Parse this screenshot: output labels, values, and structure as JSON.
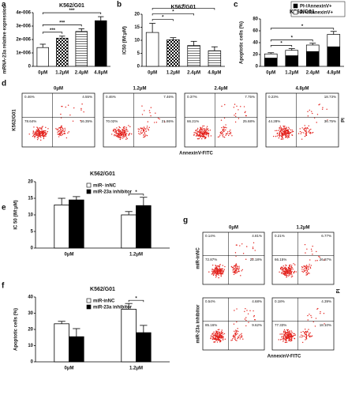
{
  "chart_data": [
    {
      "panel": "a",
      "type": "bar",
      "title": "K562/G01",
      "ylabel": "mRNA-23a relative expression",
      "categories": [
        "0μM",
        "1.2μM",
        "2.4μM",
        "4.8μM"
      ],
      "values": [
        1.4e-06,
        2.1e-06,
        2.6e-06,
        3.4e-06
      ],
      "errors": [
        2.5e-07,
        1.5e-07,
        2e-07,
        3e-07
      ],
      "bar_patterns": [
        "plain",
        "checkered",
        "hatched",
        "solid"
      ],
      "ylim": [
        0,
        4e-06
      ],
      "yticks": [
        0,
        {
          "value": 1e-06,
          "label": "1e-006"
        },
        {
          "value": 2e-06,
          "label": "2e-006"
        },
        {
          "value": 3e-06,
          "label": "3e-006"
        },
        {
          "value": 4e-06,
          "label": "4e-006"
        }
      ],
      "annotations": [
        {
          "text": "***",
          "from": 0,
          "to": 1
        },
        {
          "text": "***",
          "from": 0,
          "to": 2
        },
        {
          "text": "***",
          "from": 0,
          "to": 3
        }
      ]
    },
    {
      "panel": "b",
      "type": "bar",
      "title": "K562/G01",
      "ylabel": "IC50 (IM:μM)",
      "categories": [
        "0μM",
        "1.2μM",
        "2.4μM",
        "4.8μM"
      ],
      "values": [
        13,
        10.2,
        8,
        6
      ],
      "errors": [
        3.5,
        0.8,
        1.6,
        1.5
      ],
      "bar_patterns": [
        "plain",
        "checkered",
        "hatched",
        "hatched"
      ],
      "ylim": [
        0,
        20
      ],
      "yticks": [
        0,
        5,
        10,
        15,
        20
      ],
      "annotations": [
        {
          "text": "*",
          "from": 0,
          "to": 1
        },
        {
          "text": "*",
          "from": 0,
          "to": 2
        },
        {
          "text": "*",
          "from": 0,
          "to": 3
        }
      ]
    },
    {
      "panel": "c",
      "type": "stacked_bar",
      "title": "K562/G01",
      "ylabel": "Apoptotic cells (%)",
      "categories": [
        "0μM",
        "1.2μM",
        "2.4μM",
        "4.8μM"
      ],
      "series": [
        {
          "name": "PI-/AnnexinV+",
          "color": "#000000",
          "values": [
            14,
            18,
            25,
            33
          ]
        },
        {
          "name": "PI+/AnnexinV+",
          "color": "#ffffff",
          "values": [
            7,
            9,
            11,
            21
          ],
          "errors": [
            2,
            3,
            3,
            5
          ]
        }
      ],
      "ylim": [
        0,
        80
      ],
      "yticks": [
        0,
        20,
        40,
        60,
        80
      ],
      "annotations": [
        {
          "text": "*",
          "from": 0,
          "to": 1
        },
        {
          "text": "*",
          "from": 0,
          "to": 2
        },
        {
          "text": "*",
          "from": 0,
          "to": 3
        }
      ]
    },
    {
      "panel": "d",
      "type": "flow",
      "row_label": "K562/G01",
      "ylabel": "PI",
      "xlabel": "AnnexinV-FITC",
      "plots": [
        {
          "label": "0μM",
          "quadrants": [
            "0.46%",
            "4.55%",
            "78.64%",
            "16.35%"
          ]
        },
        {
          "label": "1.2μM",
          "quadrants": [
            "0.46%",
            "7.46%",
            "70.02%",
            "21.86%"
          ]
        },
        {
          "label": "2.4μM",
          "quadrants": [
            "0.37%",
            "7.75%",
            "66.21%",
            "25.68%"
          ]
        },
        {
          "label": "4.8μM",
          "quadrants": [
            "0.23%",
            "18.73%",
            "44.28%",
            "36.75%"
          ]
        }
      ]
    },
    {
      "panel": "e",
      "type": "grouped_bar",
      "title": "K562/G01",
      "ylabel": "IC 50 (IM:μM)",
      "categories": [
        "0μM",
        "1.2μM"
      ],
      "series": [
        {
          "name": "miR- inNC",
          "color": "#ffffff",
          "values": [
            13,
            10
          ],
          "errors": [
            2,
            1
          ]
        },
        {
          "name": "miR-23a inhibitor",
          "color": "#000000",
          "values": [
            14.5,
            12.8
          ],
          "errors": [
            1,
            2.5
          ]
        }
      ],
      "ylim": [
        0,
        20
      ],
      "yticks": [
        0,
        5,
        10,
        15,
        20
      ],
      "annotations": [
        {
          "text": "*",
          "category": 1
        }
      ]
    },
    {
      "panel": "f",
      "type": "grouped_bar",
      "title": "K562/G01",
      "ylabel": "Apoptotic cells (%)",
      "categories": [
        "0μM",
        "1.2μM"
      ],
      "series": [
        {
          "name": "miR-inNC",
          "color": "#ffffff",
          "values": [
            23.5,
            32.5
          ],
          "errors": [
            1.5,
            3.5
          ]
        },
        {
          "name": "miR-23a inhibitor",
          "color": "#000000",
          "values": [
            15.5,
            18
          ],
          "errors": [
            5,
            4.5
          ]
        }
      ],
      "ylim": [
        0,
        40
      ],
      "yticks": [
        0,
        10,
        20,
        30,
        40
      ],
      "annotations": [
        {
          "text": "*",
          "category": 1
        }
      ]
    },
    {
      "panel": "g",
      "type": "flow",
      "ylabel": "PI",
      "xlabel": "AnnexinV-FITC",
      "column_labels": [
        "0μM",
        "1.2μM"
      ],
      "row_labels": [
        "miR-inNC",
        "miR-23a inhibitor"
      ],
      "plots": [
        {
          "quadrants": [
            "0.14%",
            "4.81%",
            "72.87%",
            "22.18%"
          ]
        },
        {
          "quadrants": [
            "0.21%",
            "6.77%",
            "66.15%",
            "26.87%"
          ]
        },
        {
          "quadrants": [
            "0.54%",
            "4.68%",
            "85.16%",
            "9.62%"
          ]
        },
        {
          "quadrants": [
            "0.18%",
            "4.39%",
            "77.33%",
            "18.10%"
          ]
        }
      ]
    }
  ]
}
